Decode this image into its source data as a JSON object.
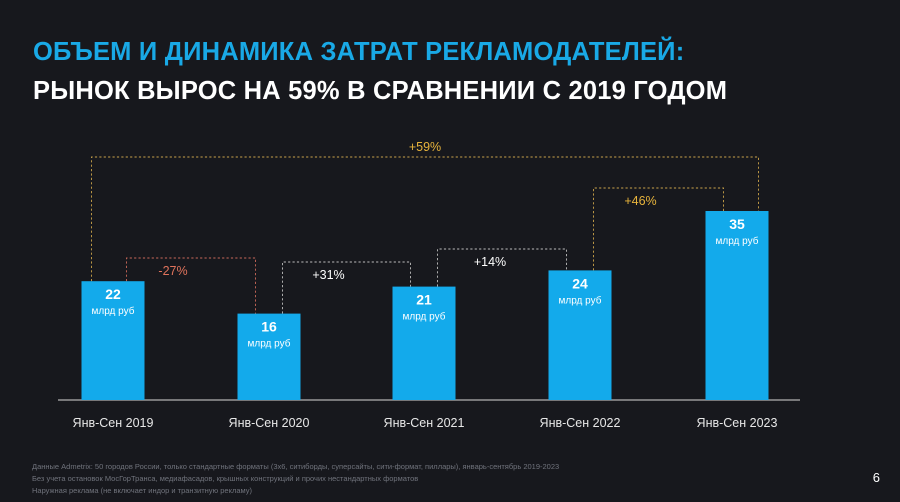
{
  "slide": {
    "title_line1": "ОБЪЕМ И ДИНАМИКА ЗАТРАТ РЕКЛАМОДАТЕЛЕЙ:",
    "title_line2": "РЫНОК ВЫРОС НА 59% В СРАВНЕНИИ С 2019 ГОДОМ",
    "footnotes": [
      "Данные Admetrix: 50 городов России, только стандартные форматы (3х6, ситиборды, суперсайты, сити-формат, пиллары), январь-сентябрь 2019-2023",
      "Без учета остановок МосГорТранса, медиафасадов, крышных конструкций и прочих нестандартных форматов",
      "Наружная реклама (не включает индор и транзитную рекламу)"
    ],
    "page_number": "6"
  },
  "chart_data": {
    "type": "bar",
    "categories": [
      "Янв-Сен 2019",
      "Янв-Сен 2020",
      "Янв-Сен 2021",
      "Янв-Сен 2022",
      "Янв-Сен 2023"
    ],
    "values": [
      22,
      16,
      21,
      24,
      35
    ],
    "unit_label": "млрд руб",
    "ylim": [
      0,
      35
    ],
    "changes": [
      {
        "from": 0,
        "to": 1,
        "label": "-27%",
        "color": "#e0735c"
      },
      {
        "from": 1,
        "to": 2,
        "label": "+31%",
        "color": "#ffffff"
      },
      {
        "from": 2,
        "to": 3,
        "label": "+14%",
        "color": "#ffffff"
      },
      {
        "from": 3,
        "to": 4,
        "label": "+46%",
        "color": "#e8b43c"
      },
      {
        "from": 0,
        "to": 4,
        "label": "+59%",
        "color": "#e8b43c"
      }
    ],
    "bar_color": "#13aaeb",
    "axis_color": "#d8d8d8"
  }
}
